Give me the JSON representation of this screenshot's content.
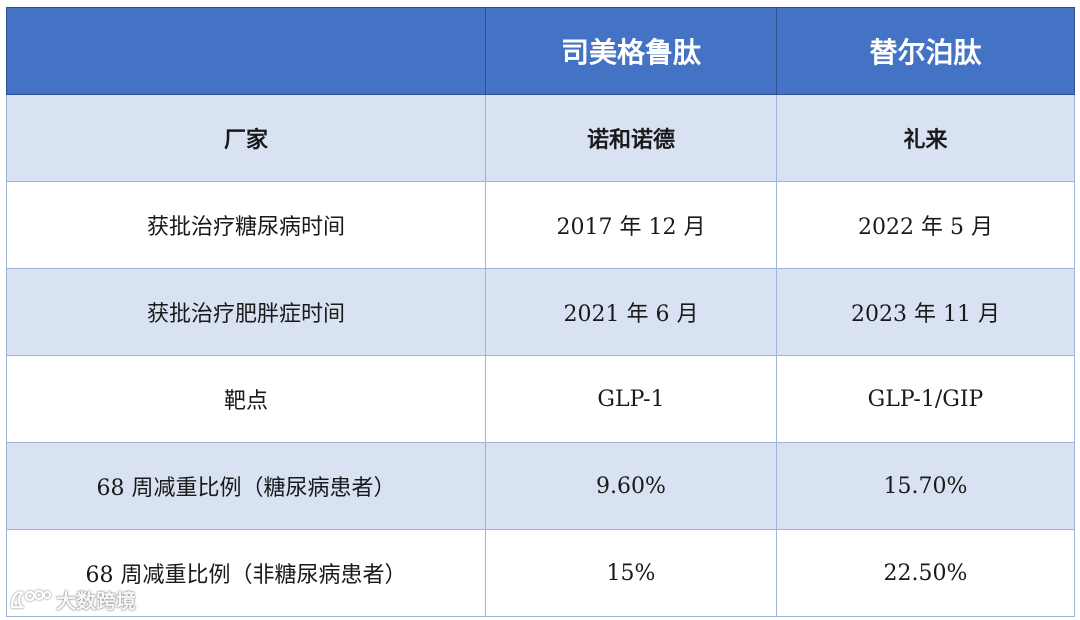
{
  "header": {
    "col0": "",
    "col1": "司美格鲁肽",
    "col2": "替尔泊肽"
  },
  "rows": [
    {
      "label": "厂家",
      "a": "诺和诺德",
      "b": "礼来"
    },
    {
      "label": "获批治疗糖尿病时间",
      "a": "2017 年 12 月",
      "b": "2022 年 5 月"
    },
    {
      "label": "获批治疗肥胖症时间",
      "a": "2021 年 6 月",
      "b": "2023 年 11 月"
    },
    {
      "label": "靶点",
      "a": "GLP-1",
      "b": "GLP-1/GIP"
    },
    {
      "label": "68 周减重比例（糖尿病患者）",
      "a": "9.60%",
      "b": "15.70%"
    },
    {
      "label": "68 周减重比例（非糖尿病患者）",
      "a": "15%",
      "b": "22.50%"
    }
  ],
  "watermark": {
    "text": "大数跨境"
  },
  "colors": {
    "header": "#4472c4",
    "shade": "#d9e2f3",
    "border": "#9fb3d9"
  }
}
